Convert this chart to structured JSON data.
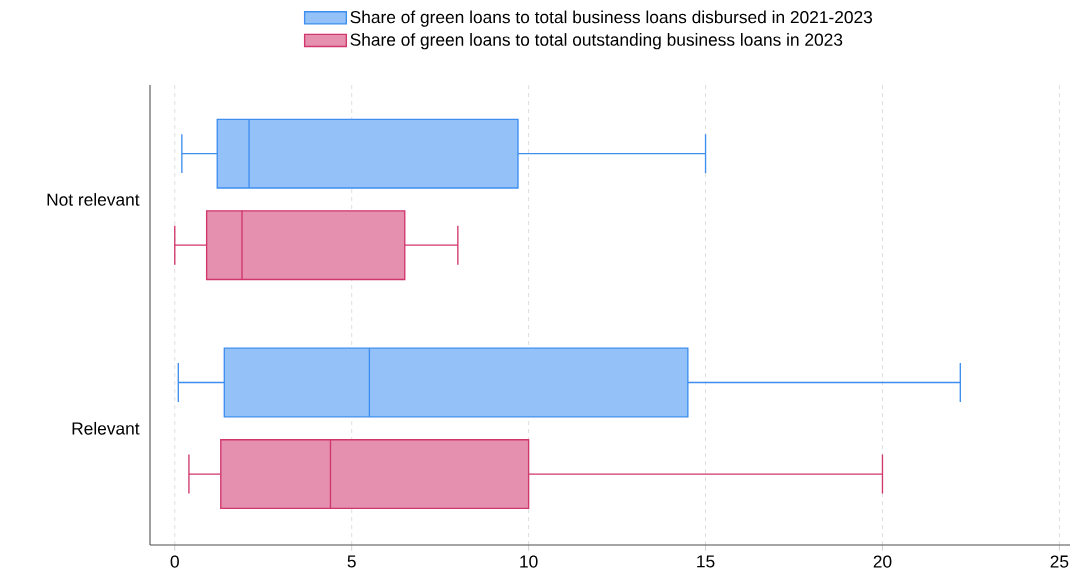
{
  "chart_data": {
    "type": "box",
    "orientation": "horizontal",
    "categories": [
      "Not relevant",
      "Relevant"
    ],
    "series": [
      {
        "name": "Share of green loans to total business loans disbursed in 2021-2023",
        "color": "#3d8ef0",
        "boxes": [
          {
            "low": 0.2,
            "q1": 1.2,
            "median": 2.1,
            "q3": 9.7,
            "high": 15.0
          },
          {
            "low": 0.1,
            "q1": 1.4,
            "median": 5.5,
            "q3": 14.5,
            "high": 22.2
          }
        ]
      },
      {
        "name": "Share of green loans to total outstanding business loans in 2023",
        "color": "#d0356b",
        "boxes": [
          {
            "low": 0.0,
            "q1": 0.9,
            "median": 1.9,
            "q3": 6.5,
            "high": 8.0
          },
          {
            "low": 0.4,
            "q1": 1.3,
            "median": 4.4,
            "q3": 10.0,
            "high": 20.0
          }
        ]
      }
    ],
    "xlim": [
      -0.7,
      25.3
    ],
    "xticks": [
      0,
      5,
      10,
      15,
      20,
      25
    ],
    "grid": "x",
    "legend": "top"
  }
}
